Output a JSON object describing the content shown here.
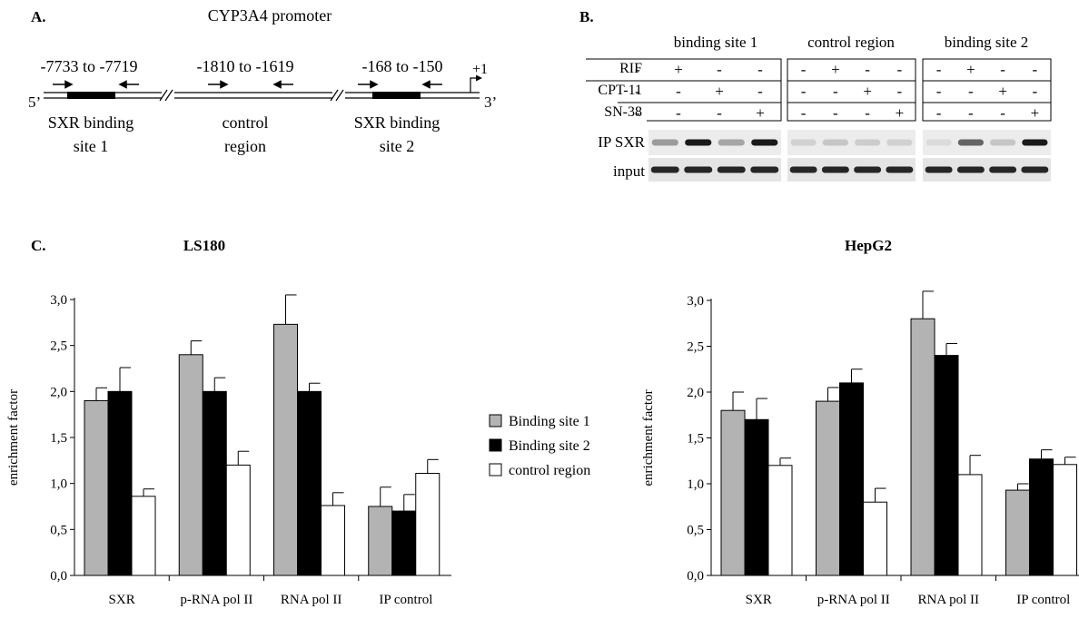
{
  "panel_a": {
    "label": "A.",
    "title": "CYP3A4 promoter",
    "end5": "5’",
    "end3": "3’",
    "tss": "+1",
    "regions": [
      {
        "range": "-7733 to -7719",
        "name_line1": "SXR binding",
        "name_line2": "site 1"
      },
      {
        "range": "-1810 to -1619",
        "name_line1": "control",
        "name_line2": "region"
      },
      {
        "range": "-168 to -150",
        "name_line1": "SXR binding",
        "name_line2": "site 2"
      }
    ]
  },
  "panel_b": {
    "label": "B.",
    "groups": [
      "binding site 1",
      "control region",
      "binding site 2"
    ],
    "treatments": [
      {
        "name": "RIF",
        "signs": [
          "-",
          "+",
          "-",
          "-"
        ]
      },
      {
        "name": "CPT-11",
        "signs": [
          "-",
          "-",
          "+",
          "-"
        ]
      },
      {
        "name": "SN-38",
        "signs": [
          "-",
          "-",
          "-",
          "+"
        ]
      }
    ],
    "rows": [
      "IP SXR",
      "input"
    ],
    "ip_band_intensity": [
      [
        0.35,
        0.95,
        0.3,
        0.95
      ],
      [
        0.1,
        0.15,
        0.12,
        0.1
      ],
      [
        0.05,
        0.6,
        0.15,
        0.95
      ]
    ],
    "input_band_intensity": [
      [
        0.9,
        0.9,
        0.9,
        0.9
      ],
      [
        0.9,
        0.9,
        0.9,
        0.9
      ],
      [
        0.9,
        0.9,
        0.9,
        0.9
      ]
    ]
  },
  "panel_c": {
    "label": "C.",
    "legend": [
      {
        "name": "Binding site 1",
        "color": "#b3b3b3"
      },
      {
        "name": "Binding site 2",
        "color": "#000000"
      },
      {
        "name": "control region",
        "color": "#ffffff"
      }
    ]
  },
  "chart_data": [
    {
      "type": "bar",
      "title": "LS180",
      "ylabel": "enrichment factor",
      "ylim": [
        0,
        3
      ],
      "yticks": [
        "0,0",
        "0,5",
        "1,0",
        "1,5",
        "2,0",
        "2,5",
        "3,0"
      ],
      "categories": [
        "SXR",
        "p-RNA pol II",
        "RNA pol II",
        "IP control"
      ],
      "series": [
        {
          "name": "Binding site 1",
          "values": [
            1.9,
            2.4,
            2.73,
            0.75
          ],
          "errors": [
            0.14,
            0.15,
            0.32,
            0.21
          ]
        },
        {
          "name": "Binding site 2",
          "values": [
            2.0,
            2.0,
            2.0,
            0.7
          ],
          "errors": [
            0.26,
            0.15,
            0.09,
            0.18
          ]
        },
        {
          "name": "control region",
          "values": [
            0.86,
            1.2,
            0.76,
            1.11
          ],
          "errors": [
            0.08,
            0.15,
            0.14,
            0.15
          ]
        }
      ]
    },
    {
      "type": "bar",
      "title": "HepG2",
      "ylabel": "enrichment factor",
      "ylim": [
        0,
        3
      ],
      "yticks": [
        "0,0",
        "0,5",
        "1,0",
        "1,5",
        "2,0",
        "2,5",
        "3,0"
      ],
      "categories": [
        "SXR",
        "p-RNA pol II",
        "RNA pol II",
        "IP control"
      ],
      "series": [
        {
          "name": "Binding site 1",
          "values": [
            1.8,
            1.9,
            2.8,
            0.93
          ],
          "errors": [
            0.2,
            0.15,
            0.3,
            0.07
          ]
        },
        {
          "name": "Binding site 2",
          "values": [
            1.7,
            2.1,
            2.4,
            1.27
          ],
          "errors": [
            0.23,
            0.15,
            0.13,
            0.1
          ]
        },
        {
          "name": "control region",
          "values": [
            1.2,
            0.8,
            1.1,
            1.21
          ],
          "errors": [
            0.08,
            0.15,
            0.21,
            0.08
          ]
        }
      ]
    }
  ]
}
